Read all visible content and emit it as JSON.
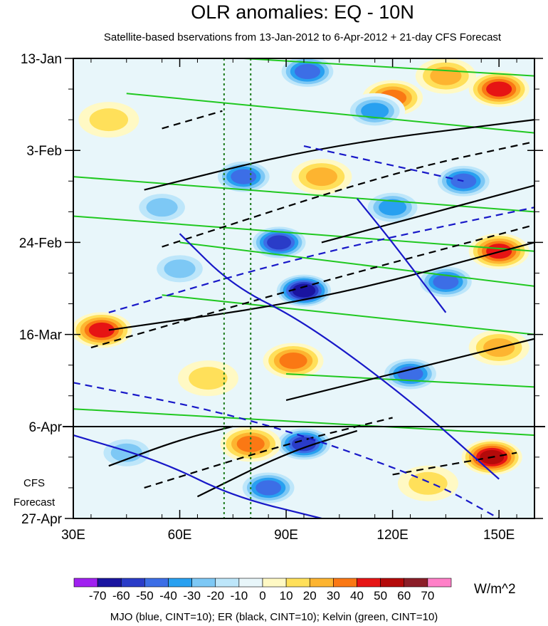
{
  "chart_data": {
    "type": "heatmap",
    "title": "OLR anomalies: EQ - 10N",
    "subtitle": "Satellite-based bservations from 13-Jan-2012 to 6-Apr-2012 + 21-day CFS Forecast",
    "x_ticks": [
      {
        "value": 30,
        "label": "30E"
      },
      {
        "value": 60,
        "label": "60E"
      },
      {
        "value": 90,
        "label": "90E"
      },
      {
        "value": 120,
        "label": "120E"
      },
      {
        "value": 150,
        "label": "150E"
      }
    ],
    "xlim": [
      30,
      160
    ],
    "y_ticks": [
      {
        "day": 0,
        "label": "13-Jan"
      },
      {
        "day": 21,
        "label": "3-Feb"
      },
      {
        "day": 42,
        "label": "24-Feb"
      },
      {
        "day": 63,
        "label": "16-Mar"
      },
      {
        "day": 84,
        "label": "6-Apr"
      },
      {
        "day": 105,
        "label": "27-Apr"
      }
    ],
    "ylim_days": [
      0,
      105
    ],
    "forecast_start_day": 84,
    "forecast_label_line1": "CFS",
    "forecast_label_line2": "Forecast",
    "reference_lines_lon": [
      72.5,
      80
    ],
    "colorbar": {
      "unit": "W/m^2",
      "levels": [
        -70,
        -60,
        -50,
        -40,
        -30,
        -20,
        -10,
        0,
        10,
        20,
        30,
        40,
        50,
        60,
        70
      ],
      "labels": [
        "-70",
        "-60",
        "-50",
        "-40",
        "-30",
        "-20",
        "-10",
        "0",
        "10",
        "20",
        "30",
        "40",
        "50",
        "60",
        "70"
      ],
      "colors": [
        "#a020f0",
        "#1a14a0",
        "#2a3cc8",
        "#3c6ee6",
        "#28a0f0",
        "#7dc8f5",
        "#bde6fa",
        "#e8f6fa",
        "#fff9c4",
        "#ffe05a",
        "#fdb430",
        "#fa7814",
        "#e61414",
        "#b40a0a",
        "#8b1e28",
        "#ff80c8"
      ]
    },
    "footer": "MJO (blue, CINT=10); ER (black, CINT=10); Kelvin (green, CINT=10)",
    "series": [
      {
        "name": "MJO",
        "color": "#1818c8"
      },
      {
        "name": "ER",
        "color": "#000000"
      },
      {
        "name": "Kelvin",
        "color": "#20c820"
      }
    ],
    "anomaly_blobs": [
      {
        "lon": 120,
        "day": 9,
        "value": 40
      },
      {
        "lon": 135,
        "day": 4,
        "value": 30
      },
      {
        "lon": 150,
        "day": 7,
        "value": 50
      },
      {
        "lon": 40,
        "day": 14,
        "value": 20
      },
      {
        "lon": 96,
        "day": 3,
        "value": -50
      },
      {
        "lon": 115,
        "day": 12,
        "value": -40
      },
      {
        "lon": 78,
        "day": 27,
        "value": -50
      },
      {
        "lon": 140,
        "day": 28,
        "value": -50
      },
      {
        "lon": 100,
        "day": 27,
        "value": 30
      },
      {
        "lon": 120,
        "day": 34,
        "value": -40
      },
      {
        "lon": 55,
        "day": 34,
        "value": -30
      },
      {
        "lon": 150,
        "day": 44,
        "value": 50
      },
      {
        "lon": 88,
        "day": 42,
        "value": -60
      },
      {
        "lon": 135,
        "day": 51,
        "value": -50
      },
      {
        "lon": 95,
        "day": 53,
        "value": -70
      },
      {
        "lon": 60,
        "day": 48,
        "value": -30
      },
      {
        "lon": 38,
        "day": 62,
        "value": 50
      },
      {
        "lon": 92,
        "day": 69,
        "value": 40
      },
      {
        "lon": 125,
        "day": 72,
        "value": -50
      },
      {
        "lon": 150,
        "day": 66,
        "value": 30
      },
      {
        "lon": 68,
        "day": 73,
        "value": 20
      },
      {
        "lon": 45,
        "day": 90,
        "value": -30
      },
      {
        "lon": 95,
        "day": 88,
        "value": -60
      },
      {
        "lon": 80,
        "day": 88,
        "value": 40
      },
      {
        "lon": 148,
        "day": 91,
        "value": 60
      },
      {
        "lon": 85,
        "day": 98,
        "value": -50
      },
      {
        "lon": 130,
        "day": 97,
        "value": 20
      }
    ],
    "contour_lines": [
      {
        "series": "Kelvin",
        "sign": 1,
        "points": [
          [
            78,
            0
          ],
          [
            160,
            4
          ]
        ]
      },
      {
        "series": "Kelvin",
        "sign": 1,
        "points": [
          [
            45,
            8
          ],
          [
            160,
            17
          ]
        ]
      },
      {
        "series": "Kelvin",
        "sign": 1,
        "points": [
          [
            30,
            27
          ],
          [
            160,
            35
          ]
        ]
      },
      {
        "series": "Kelvin",
        "sign": 1,
        "points": [
          [
            30,
            36
          ],
          [
            160,
            44
          ]
        ]
      },
      {
        "series": "Kelvin",
        "sign": 1,
        "points": [
          [
            60,
            42
          ],
          [
            160,
            52
          ]
        ]
      },
      {
        "series": "Kelvin",
        "sign": 1,
        "points": [
          [
            55,
            54
          ],
          [
            160,
            63
          ]
        ]
      },
      {
        "series": "Kelvin",
        "sign": 1,
        "points": [
          [
            90,
            72
          ],
          [
            160,
            75
          ]
        ]
      },
      {
        "series": "Kelvin",
        "sign": 1,
        "points": [
          [
            30,
            80
          ],
          [
            160,
            86
          ]
        ]
      },
      {
        "series": "ER",
        "sign": 1,
        "points": [
          [
            50,
            30
          ],
          [
            100,
            20
          ],
          [
            160,
            14
          ]
        ]
      },
      {
        "series": "ER",
        "sign": 1,
        "points": [
          [
            100,
            42
          ],
          [
            160,
            29
          ]
        ]
      },
      {
        "series": "ER",
        "sign": 1,
        "points": [
          [
            40,
            62
          ],
          [
            100,
            55
          ],
          [
            160,
            42
          ]
        ]
      },
      {
        "series": "ER",
        "sign": 1,
        "points": [
          [
            90,
            78
          ],
          [
            160,
            64
          ]
        ]
      },
      {
        "series": "ER",
        "sign": 1,
        "points": [
          [
            40,
            93
          ],
          [
            60,
            87
          ],
          [
            75,
            84
          ]
        ]
      },
      {
        "series": "ER",
        "sign": 1,
        "points": [
          [
            65,
            100
          ],
          [
            90,
            90
          ],
          [
            110,
            85
          ]
        ]
      },
      {
        "series": "ER",
        "sign": -1,
        "points": [
          [
            55,
            16
          ],
          [
            72,
            12
          ]
        ]
      },
      {
        "series": "ER",
        "sign": -1,
        "points": [
          [
            55,
            43
          ],
          [
            120,
            26
          ],
          [
            160,
            19
          ]
        ]
      },
      {
        "series": "ER",
        "sign": -1,
        "points": [
          [
            35,
            66
          ],
          [
            95,
            52
          ],
          [
            160,
            38
          ]
        ]
      },
      {
        "series": "ER",
        "sign": -1,
        "points": [
          [
            50,
            98
          ],
          [
            90,
            88
          ],
          [
            120,
            82
          ]
        ]
      },
      {
        "series": "ER",
        "sign": -1,
        "points": [
          [
            120,
            95
          ],
          [
            155,
            90
          ]
        ]
      },
      {
        "series": "MJO",
        "sign": 1,
        "points": [
          [
            60,
            40
          ],
          [
            75,
            52
          ],
          [
            95,
            60
          ],
          [
            125,
            78
          ],
          [
            150,
            96
          ]
        ]
      },
      {
        "series": "MJO",
        "sign": 1,
        "points": [
          [
            30,
            86
          ],
          [
            55,
            92
          ],
          [
            75,
            100
          ],
          [
            100,
            105
          ]
        ]
      },
      {
        "series": "MJO",
        "sign": 1,
        "points": [
          [
            110,
            32
          ],
          [
            120,
            42
          ],
          [
            135,
            58
          ]
        ]
      },
      {
        "series": "MJO",
        "sign": -1,
        "points": [
          [
            30,
            74
          ],
          [
            80,
            82
          ],
          [
            130,
            96
          ],
          [
            150,
            105
          ]
        ]
      },
      {
        "series": "MJO",
        "sign": -1,
        "points": [
          [
            40,
            58
          ],
          [
            95,
            45
          ],
          [
            160,
            34
          ]
        ]
      },
      {
        "series": "MJO",
        "sign": -1,
        "points": [
          [
            95,
            20
          ],
          [
            140,
            28
          ]
        ]
      }
    ]
  }
}
